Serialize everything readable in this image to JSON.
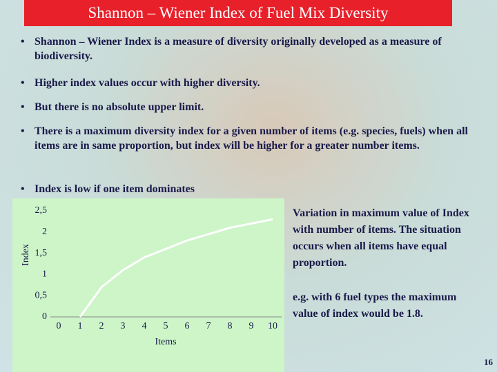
{
  "title": "Shannon – Wiener Index of Fuel Mix Diversity",
  "bullets": [
    "Shannon – Wiener Index is a measure of diversity originally developed as a measure of biodiversity.",
    "Higher index values occur with higher diversity.",
    "But there is no absolute upper limit.",
    "There is a maximum diversity index for a given number of items (e.g. species, fuels) when all items are in same proportion, but index will be higher for a greater number items.",
    "Index is low if one item dominates"
  ],
  "notes": [
    "Variation in maximum value of Index with number of items. The situation occurs when all items have equal proportion.",
    "e.g. with 6 fuel types the maximum value of index would be 1.8."
  ],
  "page_number": "16",
  "chart_data": {
    "type": "line",
    "x_label": "Items",
    "y_label": "Index",
    "x": [
      1,
      2,
      3,
      4,
      5,
      6,
      7,
      8,
      9,
      10
    ],
    "series": [
      {
        "color": "#ffffff",
        "values": [
          0,
          0.7,
          1.1,
          1.4,
          1.6,
          1.8,
          1.95,
          2.1,
          2.2,
          2.3
        ]
      }
    ],
    "xlim": [
      0,
      10
    ],
    "xticks": [
      0,
      1,
      2,
      3,
      4,
      5,
      6,
      7,
      8,
      9,
      10
    ],
    "ylim": [
      0,
      2.5
    ],
    "yticks": [
      0,
      {
        "value": 0.5,
        "label": "0,5"
      },
      1,
      {
        "value": 1.5,
        "label": "1,5"
      },
      2,
      {
        "value": 2.5,
        "label": "2,5"
      }
    ]
  }
}
